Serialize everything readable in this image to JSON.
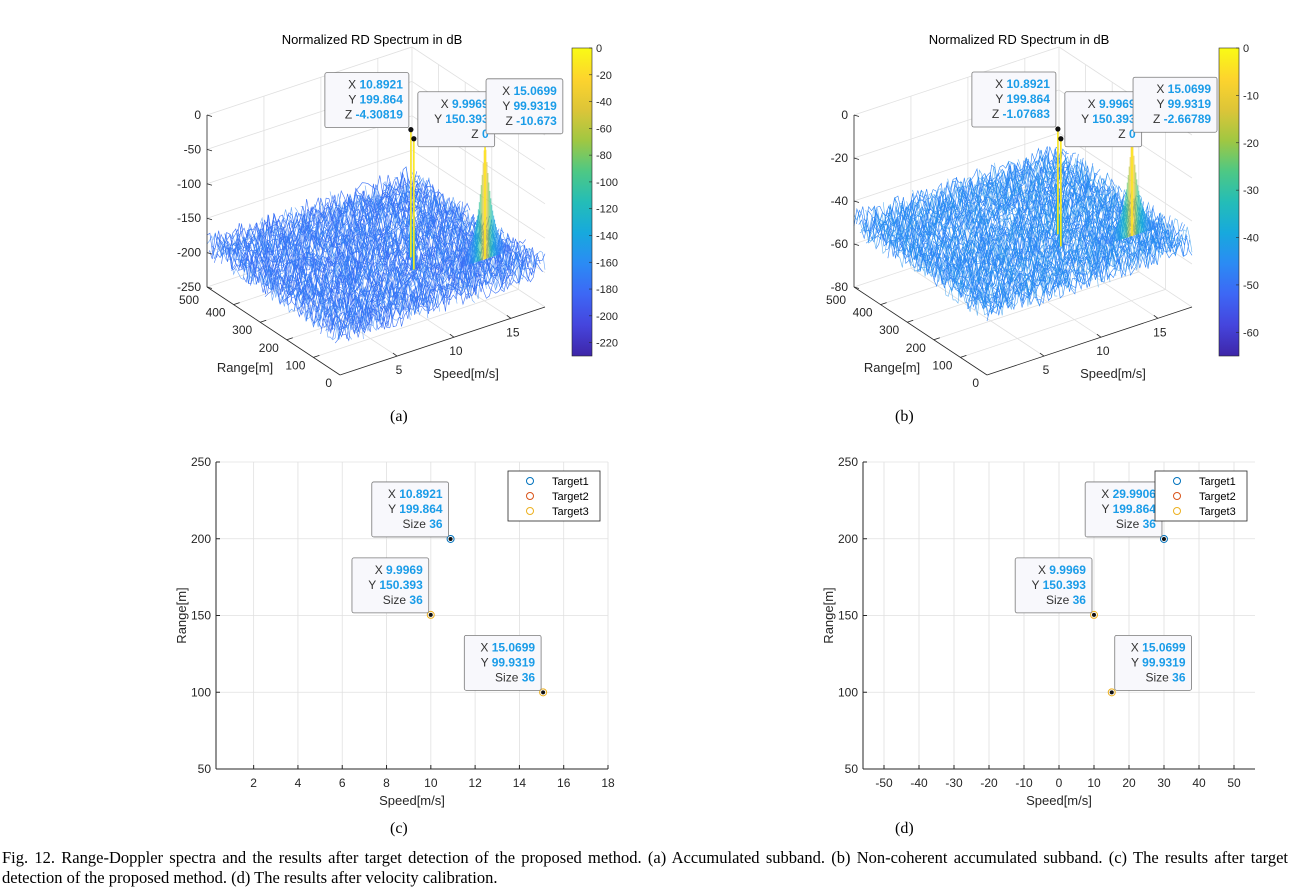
{
  "figure": {
    "caption": "Fig. 12.   Range-Doppler spectra and the results after target detection of the proposed method. (a) Accumulated subband. (b) Non-coherent accumulated subband. (c) The results after target detection of the proposed method. (d) The results after velocity calibration.",
    "panel_labels": [
      "(a)",
      "(b)",
      "(c)",
      "(d)"
    ]
  },
  "colors": {
    "datatip_value": "#1a9ce8",
    "surface_base": "#3d5cf0",
    "target1": "#0072bd",
    "target2": "#d95319",
    "target3": "#edb120",
    "grid": "#e0e0e0",
    "axis": "#262626"
  },
  "chart_data": [
    {
      "id": "a",
      "type": "surface",
      "title": "Normalized RD Spectrum in dB",
      "xlabel": "Speed[m/s]",
      "ylabel": "Range[m]",
      "zlabel": "",
      "x_ticks": [
        5,
        10,
        15
      ],
      "y_ticks": [
        0,
        100,
        200,
        300,
        400,
        500
      ],
      "z_ticks": [
        0,
        -50,
        -100,
        -150,
        -200,
        -250
      ],
      "zlim": [
        -250,
        0
      ],
      "noise_floor_db": -190,
      "colorbar": {
        "range": [
          -230,
          0
        ],
        "ticks": [
          0,
          -20,
          -40,
          -60,
          -80,
          -100,
          -120,
          -140,
          -160,
          -180,
          -200,
          -220
        ]
      },
      "peaks": [
        {
          "x": 10.8921,
          "y": 199.864,
          "z": -4.30819
        },
        {
          "x": 9.9969,
          "y": 150.393,
          "z": 0
        },
        {
          "x": 15.0699,
          "y": 99.9319,
          "z": -10.673
        }
      ],
      "datatips": [
        {
          "lines": [
            [
              "X",
              "10.8921"
            ],
            [
              "Y",
              "199.864"
            ],
            [
              "Z",
              "-4.30819"
            ]
          ]
        },
        {
          "lines": [
            [
              "X",
              "9.9969"
            ],
            [
              "Y",
              "150.393"
            ],
            [
              "Z",
              "0"
            ]
          ]
        },
        {
          "lines": [
            [
              "X",
              "15.0699"
            ],
            [
              "Y",
              "99.9319"
            ],
            [
              "Z",
              "-10.673"
            ]
          ]
        }
      ]
    },
    {
      "id": "b",
      "type": "surface",
      "title": "Normalized RD Spectrum in dB",
      "xlabel": "Speed[m/s]",
      "ylabel": "Range[m]",
      "zlabel": "",
      "x_ticks": [
        5,
        10,
        15
      ],
      "y_ticks": [
        0,
        100,
        200,
        300,
        400,
        500
      ],
      "z_ticks": [
        0,
        -20,
        -40,
        -60,
        -80
      ],
      "zlim": [
        -80,
        0
      ],
      "noise_floor_db": -50,
      "colorbar": {
        "range": [
          -65,
          0
        ],
        "ticks": [
          0,
          -10,
          -20,
          -30,
          -40,
          -50,
          -60
        ]
      },
      "peaks": [
        {
          "x": 10.8921,
          "y": 199.864,
          "z": -1.07683
        },
        {
          "x": 9.9969,
          "y": 150.393,
          "z": 0
        },
        {
          "x": 15.0699,
          "y": 99.9319,
          "z": -2.66789
        }
      ],
      "datatips": [
        {
          "lines": [
            [
              "X",
              "10.8921"
            ],
            [
              "Y",
              "199.864"
            ],
            [
              "Z",
              "-1.07683"
            ]
          ]
        },
        {
          "lines": [
            [
              "X",
              "9.9969"
            ],
            [
              "Y",
              "150.393"
            ],
            [
              "Z",
              "0"
            ]
          ]
        },
        {
          "lines": [
            [
              "X",
              "15.0699"
            ],
            [
              "Y",
              "99.9319"
            ],
            [
              "Z",
              "-2.66789"
            ]
          ]
        }
      ]
    },
    {
      "id": "c",
      "type": "scatter",
      "title": "",
      "xlabel": "Speed[m/s]",
      "ylabel": "Range[m]",
      "xlim": [
        0.3,
        18
      ],
      "ylim": [
        50,
        250
      ],
      "x_ticks": [
        2,
        4,
        6,
        8,
        10,
        12,
        14,
        16,
        18
      ],
      "y_ticks": [
        50,
        100,
        150,
        200,
        250
      ],
      "grid": true,
      "legend": {
        "position": "top-right",
        "entries": [
          "Target1",
          "Target2",
          "Target3"
        ]
      },
      "series": [
        {
          "name": "Target1",
          "x": 10.8921,
          "y": 199.864,
          "size": 36
        },
        {
          "name": "Target2",
          "x": 9.9969,
          "y": 150.393,
          "size": 36
        },
        {
          "name": "Target3",
          "x": 15.0699,
          "y": 99.9319,
          "size": 36
        }
      ],
      "datatips": [
        {
          "target": 0,
          "side": "left",
          "lines": [
            [
              "X",
              "10.8921"
            ],
            [
              "Y",
              "199.864"
            ],
            [
              "Size",
              "36"
            ]
          ]
        },
        {
          "target": 1,
          "side": "left",
          "lines": [
            [
              "X",
              "9.9969"
            ],
            [
              "Y",
              "150.393"
            ],
            [
              "Size",
              "36"
            ]
          ]
        },
        {
          "target": 2,
          "side": "left",
          "lines": [
            [
              "X",
              "15.0699"
            ],
            [
              "Y",
              "99.9319"
            ],
            [
              "Size",
              "36"
            ]
          ]
        }
      ]
    },
    {
      "id": "d",
      "type": "scatter",
      "title": "",
      "xlabel": "Speed[m/s]",
      "ylabel": "Range[m]",
      "xlim": [
        -56,
        56
      ],
      "ylim": [
        50,
        250
      ],
      "x_ticks": [
        -50,
        -40,
        -30,
        -20,
        -10,
        0,
        10,
        20,
        30,
        40,
        50
      ],
      "y_ticks": [
        50,
        100,
        150,
        200,
        250
      ],
      "grid": true,
      "legend": {
        "position": "top-right",
        "entries": [
          "Target1",
          "Target2",
          "Target3"
        ]
      },
      "series": [
        {
          "name": "Target1",
          "x": 29.9906,
          "y": 199.864,
          "size": 36
        },
        {
          "name": "Target2",
          "x": 9.9969,
          "y": 150.393,
          "size": 36
        },
        {
          "name": "Target3",
          "x": 15.0699,
          "y": 99.9319,
          "size": 36
        }
      ],
      "datatips": [
        {
          "target": 0,
          "side": "left",
          "lines": [
            [
              "X",
              "29.9906"
            ],
            [
              "Y",
              "199.864"
            ],
            [
              "Size",
              "36"
            ]
          ]
        },
        {
          "target": 1,
          "side": "left",
          "lines": [
            [
              "X",
              "9.9969"
            ],
            [
              "Y",
              "150.393"
            ],
            [
              "Size",
              "36"
            ]
          ]
        },
        {
          "target": 2,
          "side": "right",
          "lines": [
            [
              "X",
              "15.0699"
            ],
            [
              "Y",
              "99.9319"
            ],
            [
              "Size",
              "36"
            ]
          ]
        }
      ]
    }
  ]
}
